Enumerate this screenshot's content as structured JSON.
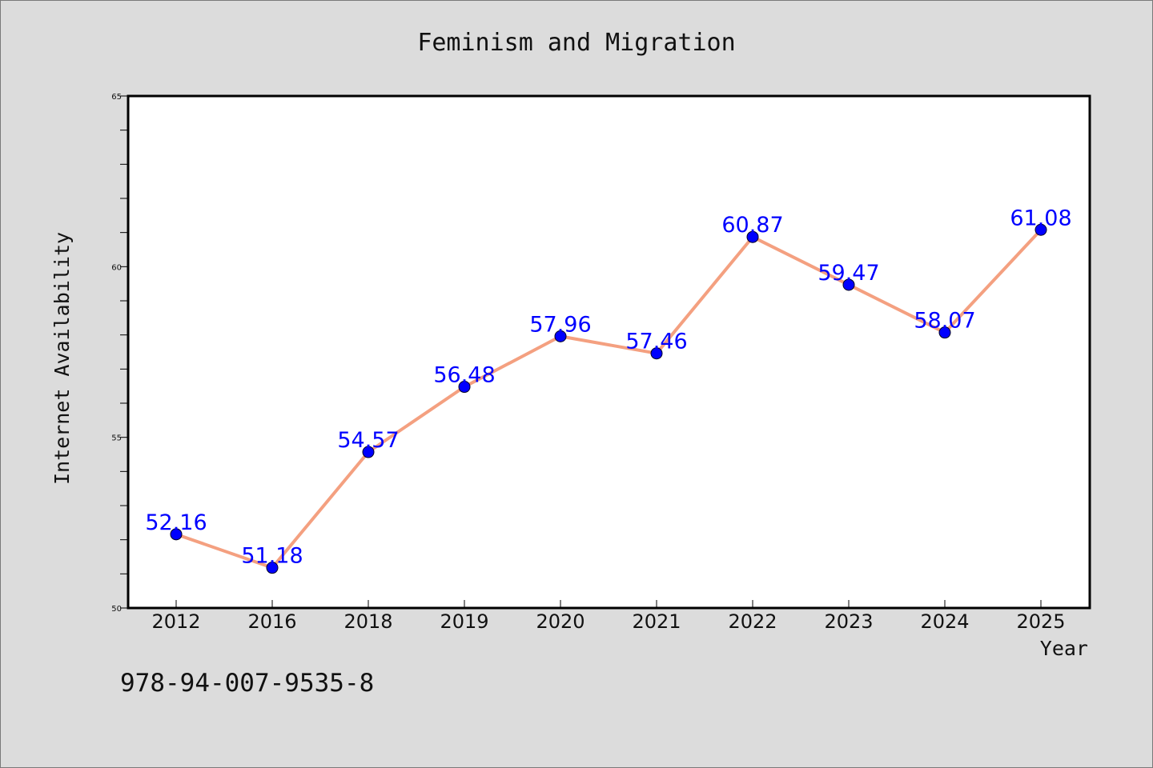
{
  "chart_data": {
    "type": "line",
    "title": "Feminism and Migration",
    "xlabel": "Year",
    "ylabel": "Internet Availability",
    "categories": [
      "2012",
      "2016",
      "2018",
      "2019",
      "2020",
      "2021",
      "2022",
      "2023",
      "2024",
      "2025"
    ],
    "series": [
      {
        "values": [
          52.16,
          51.18,
          54.57,
          56.48,
          57.96,
          57.46,
          60.87,
          59.47,
          58.07,
          61.08
        ],
        "labels": [
          "52.16",
          "51.18",
          "54.57",
          "56.48",
          "57.96",
          "57.46",
          "60.87",
          "59.47",
          "58.07",
          "61.08"
        ]
      }
    ],
    "ylim": [
      50,
      65
    ],
    "yticks": [
      50,
      55,
      60,
      65
    ],
    "ytick_labels": [
      "50",
      "55",
      "60",
      "65"
    ],
    "grid": false,
    "legend": "none",
    "colors": {
      "line": "#f4a080",
      "marker": "#0000ff",
      "label": "#0000ff",
      "background": "#dcdcdc",
      "plot_background": "#ffffff"
    }
  },
  "footer": {
    "isbn": "978-94-007-9535-8"
  }
}
